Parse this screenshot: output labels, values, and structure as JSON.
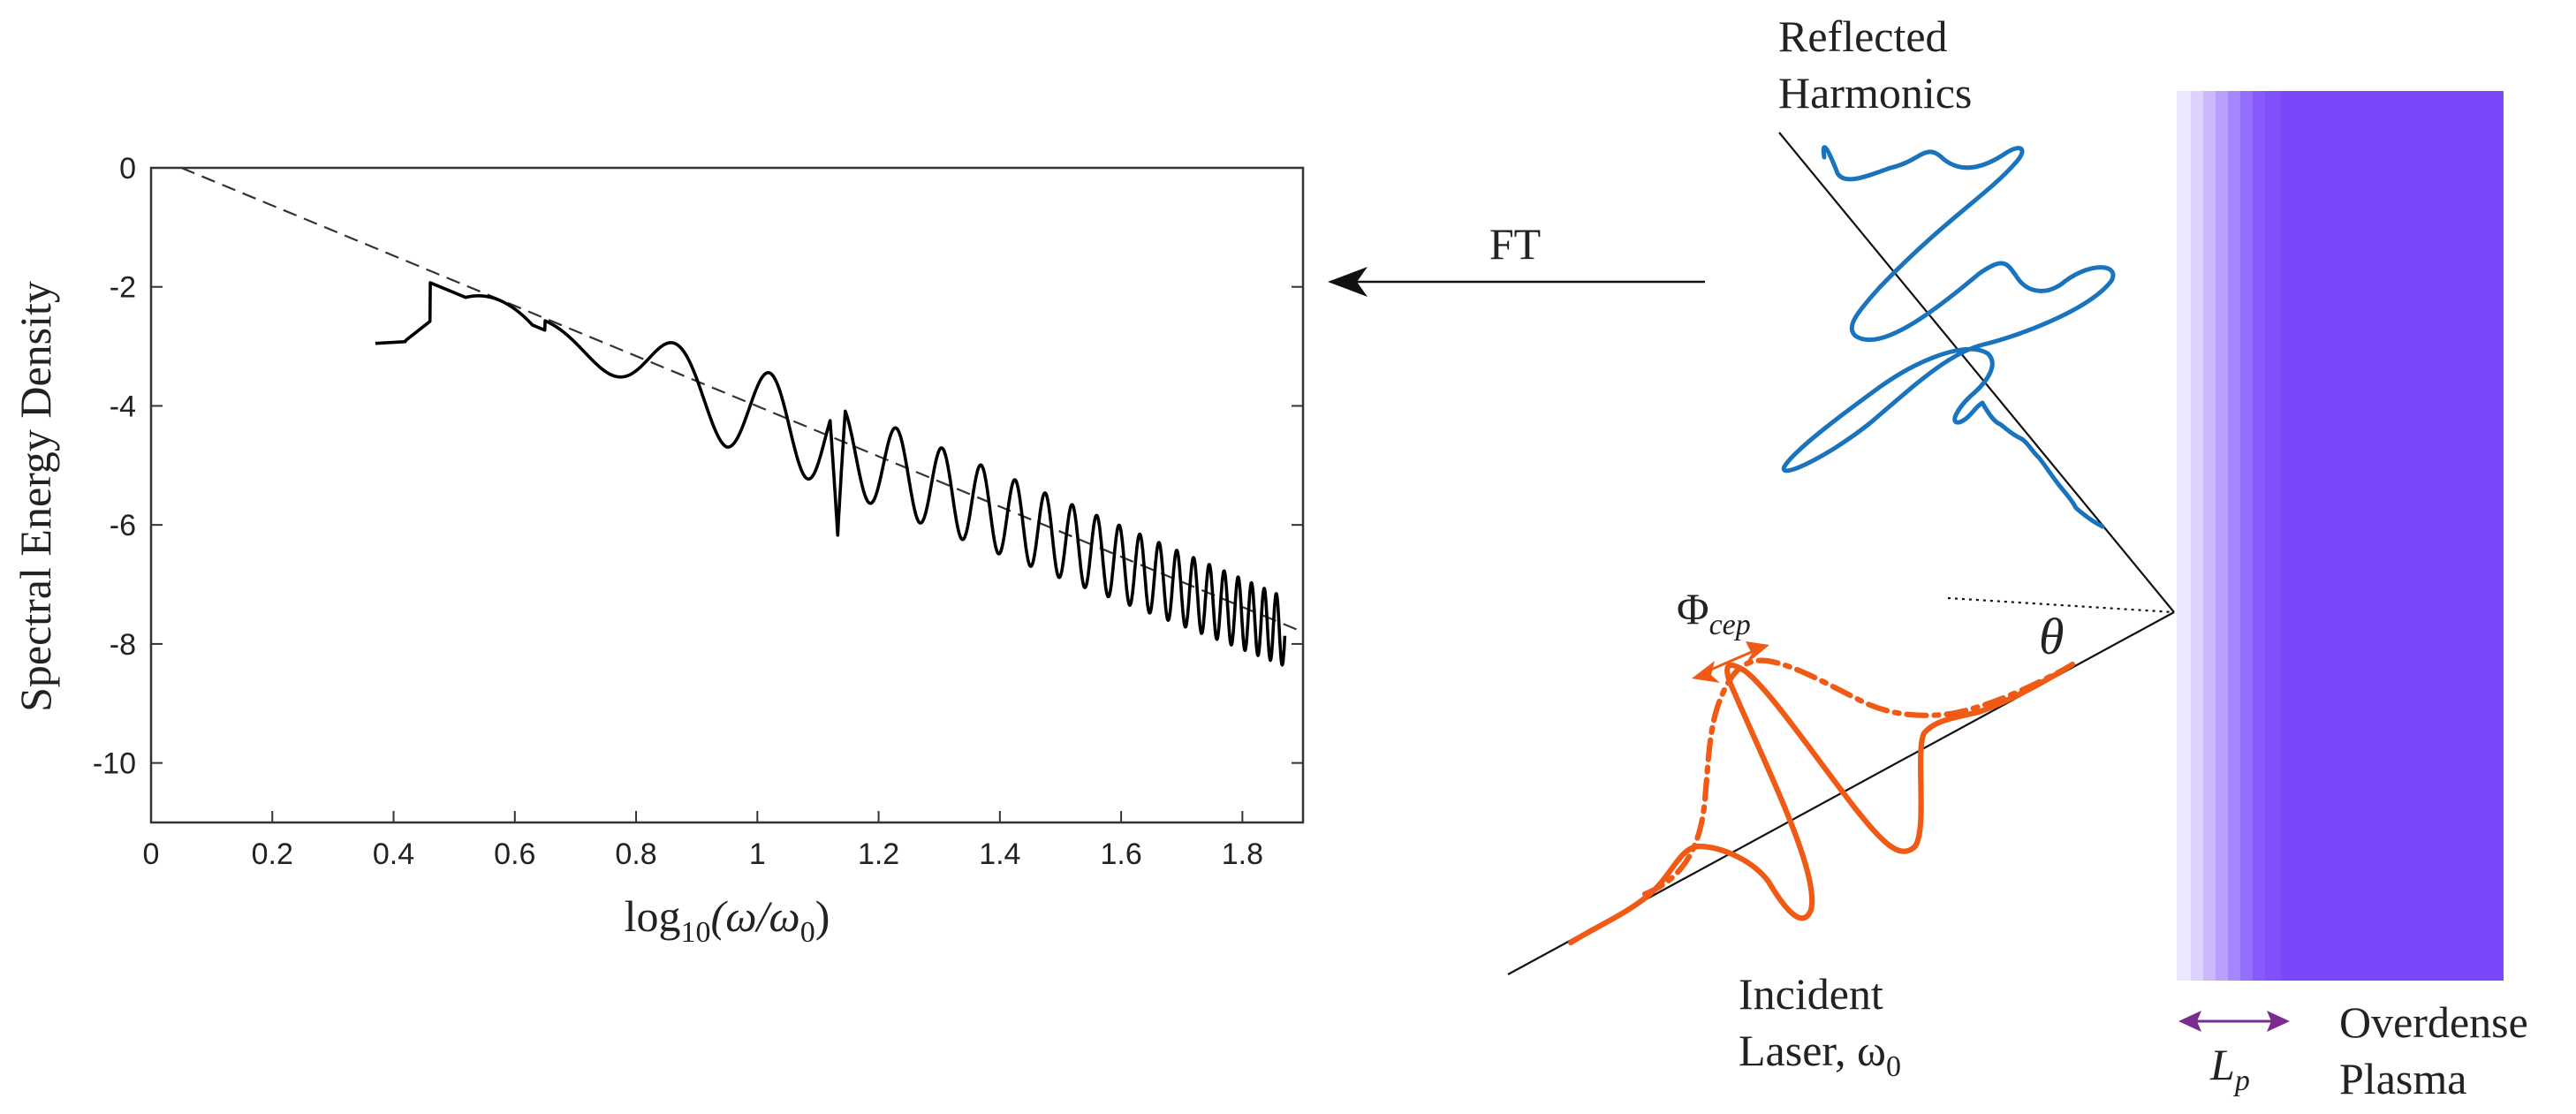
{
  "chart_data": {
    "type": "line",
    "title": "",
    "xlabel_main": "log",
    "xlabel_sub": "10",
    "xlabel_rest": "(ω/ω",
    "xlabel_sub2": "0",
    "xlabel_end": ")",
    "ylabel": "Spectral Energy Density",
    "xlim": [
      0,
      1.9
    ],
    "ylim": [
      -11,
      0
    ],
    "xticks": [
      0,
      0.2,
      0.4,
      0.6,
      0.8,
      1,
      1.2,
      1.4,
      1.6,
      1.8
    ],
    "xtick_labels": [
      "0",
      "0.2",
      "0.4",
      "0.6",
      "0.8",
      "1",
      "1.2",
      "1.4",
      "1.6",
      "1.8"
    ],
    "yticks": [
      0,
      -2,
      -4,
      -6,
      -8,
      -10
    ],
    "ytick_labels": [
      "0",
      "-2",
      "-4",
      "-6",
      "-8",
      "-10"
    ],
    "series": [
      {
        "name": "spectrum",
        "style": "solid",
        "color": "#000000",
        "x_start": 0.37,
        "x_end": 1.87
      },
      {
        "name": "power-law fit",
        "style": "dashed",
        "color": "#333333",
        "x": [
          0.05,
          1.9
        ],
        "y": [
          0,
          -7.8
        ]
      }
    ]
  },
  "diagram": {
    "ft_label": "FT",
    "reflected_label_line1": "Reflected",
    "reflected_label_line2": "Harmonics",
    "incident_label_line1": "Incident",
    "incident_label_line2": "Laser, ω",
    "incident_label_sub": "0",
    "phi_label": "Φ",
    "phi_sub": "cep",
    "theta_label": "θ",
    "lp_label": "L",
    "lp_sub": "p",
    "plasma_label_line1": "Overdense",
    "plasma_label_line2": "Plasma",
    "colors": {
      "reflected": "#1a73bd",
      "incident": "#f05a14",
      "plasma": "#7b47fb",
      "lp_arrow": "#7a2d8f"
    }
  }
}
